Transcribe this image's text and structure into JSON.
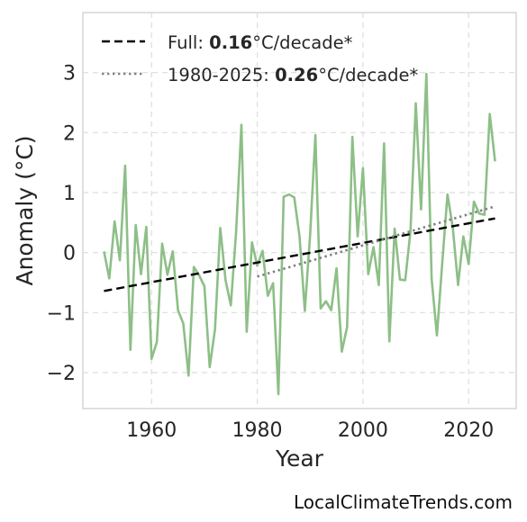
{
  "chart_data": {
    "type": "line",
    "xlabel": "Year",
    "ylabel": "Anomaly (°C)",
    "xlim": [
      1947,
      2029
    ],
    "ylim": [
      -2.6,
      4.0
    ],
    "x_ticks": [
      1960,
      1980,
      2000,
      2020
    ],
    "x_tick_labels": [
      "1960",
      "1980",
      "2000",
      "2020"
    ],
    "y_ticks": [
      -2,
      -1,
      0,
      1,
      2,
      3
    ],
    "y_tick_labels": [
      "−2",
      "−1",
      "0",
      "1",
      "2",
      "3"
    ],
    "grid": true,
    "legend_position": "top-left",
    "series": [
      {
        "style": "line",
        "color": "#8dbf87",
        "x": [
          1951,
          1952,
          1953,
          1954,
          1955,
          1956,
          1957,
          1958,
          1959,
          1960,
          1961,
          1962,
          1963,
          1964,
          1965,
          1966,
          1967,
          1968,
          1969,
          1970,
          1971,
          1972,
          1973,
          1974,
          1975,
          1976,
          1977,
          1978,
          1979,
          1980,
          1981,
          1982,
          1983,
          1984,
          1985,
          1986,
          1987,
          1988,
          1989,
          1990,
          1991,
          1992,
          1993,
          1994,
          1995,
          1996,
          1997,
          1998,
          1999,
          2000,
          2001,
          2002,
          2003,
          2004,
          2005,
          2006,
          2007,
          2008,
          2009,
          2010,
          2011,
          2012,
          2013,
          2014,
          2015,
          2016,
          2017,
          2018,
          2019,
          2020,
          2021,
          2022,
          2023,
          2024,
          2025
        ],
        "values": [
          0.02,
          -0.43,
          0.52,
          -0.13,
          1.45,
          -1.62,
          0.46,
          -0.36,
          0.43,
          -1.77,
          -1.49,
          0.15,
          -0.37,
          0.02,
          -0.96,
          -1.18,
          -2.05,
          -0.24,
          -0.38,
          -0.56,
          -1.91,
          -1.28,
          0.41,
          -0.46,
          -0.88,
          0.35,
          2.13,
          -1.32,
          0.17,
          -0.22,
          0.03,
          -0.72,
          -0.51,
          -2.36,
          0.93,
          0.97,
          0.92,
          0.27,
          -0.97,
          0.29,
          1.96,
          -0.93,
          -0.81,
          -0.96,
          -0.26,
          -1.65,
          -1.24,
          1.93,
          0.27,
          1.41,
          -0.36,
          0.09,
          -0.54,
          1.82,
          -1.48,
          0.4,
          -0.45,
          -0.46,
          0.36,
          2.49,
          0.72,
          2.98,
          -0.44,
          -1.38,
          -0.18,
          0.97,
          0.42,
          -0.54,
          0.27,
          -0.19,
          0.85,
          0.65,
          0.63,
          2.31,
          1.52
        ]
      },
      {
        "style": "dashed",
        "color": "#000000",
        "x": [
          1951,
          2025
        ],
        "values": [
          -0.64,
          0.57
        ]
      },
      {
        "style": "dotted",
        "color": "#808080",
        "x": [
          1980,
          2025
        ],
        "values": [
          -0.4,
          0.77
        ]
      }
    ],
    "legend": [
      {
        "style": "dashed",
        "color": "#000000",
        "prefix": "Full: ",
        "bold": "0.16",
        "suffix": "°C/decade*"
      },
      {
        "style": "dotted",
        "color": "#808080",
        "prefix": "1980-2025: ",
        "bold": "0.26",
        "suffix": "°C/decade*"
      }
    ]
  },
  "footer": {
    "text": "LocalClimateTrends.com"
  }
}
